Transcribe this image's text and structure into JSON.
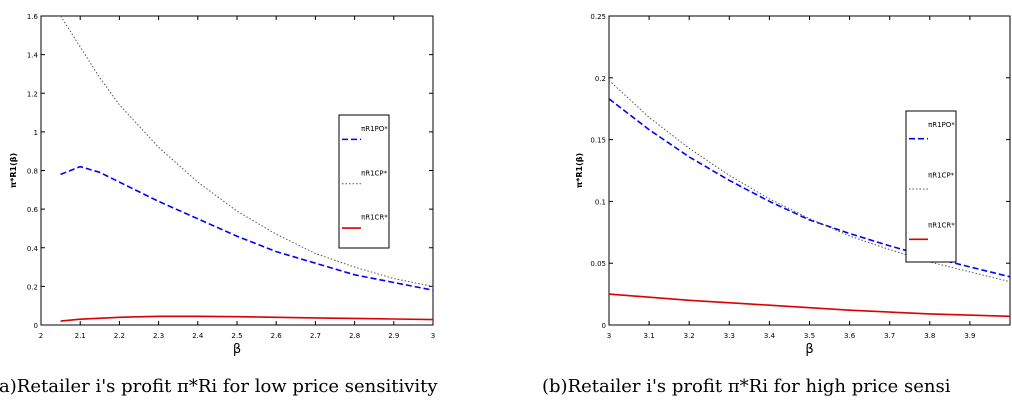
{
  "chart_data": [
    {
      "type": "line",
      "xlabel": "β",
      "ylabel": "π*R1(β)",
      "xlim": [
        2,
        3
      ],
      "ylim": [
        0,
        1.6
      ],
      "xticks": [
        "2",
        "2.1",
        "2.2",
        "2.3",
        "2.4",
        "2.5",
        "2.6",
        "2.7",
        "2.8",
        "2.9",
        "3"
      ],
      "yticks": [
        "0",
        "0.2",
        "0.4",
        "0.6",
        "0.8",
        "1",
        "1.2",
        "1.4",
        "1.6"
      ],
      "grid": false,
      "legend_position": "right",
      "series": [
        {
          "name": "πR1PO*",
          "style": "dashed",
          "color": "#0000ff",
          "x": [
            2.05,
            2.1,
            2.15,
            2.2,
            2.3,
            2.4,
            2.5,
            2.6,
            2.7,
            2.8,
            2.9,
            3.0
          ],
          "y": [
            0.78,
            0.82,
            0.79,
            0.74,
            0.64,
            0.55,
            0.46,
            0.38,
            0.32,
            0.26,
            0.22,
            0.18
          ]
        },
        {
          "name": "πR1CP*",
          "style": "dotted",
          "color": "#555555",
          "x": [
            2.05,
            2.1,
            2.15,
            2.2,
            2.3,
            2.4,
            2.5,
            2.6,
            2.7,
            2.8,
            2.9,
            3.0
          ],
          "y": [
            1.6,
            1.44,
            1.28,
            1.14,
            0.92,
            0.74,
            0.59,
            0.47,
            0.37,
            0.3,
            0.24,
            0.2
          ]
        },
        {
          "name": "πR1CR*",
          "style": "solid",
          "color": "#dd0000",
          "x": [
            2.05,
            2.1,
            2.2,
            2.3,
            2.4,
            2.5,
            2.6,
            2.7,
            2.8,
            2.9,
            3.0
          ],
          "y": [
            0.02,
            0.03,
            0.04,
            0.045,
            0.045,
            0.043,
            0.04,
            0.037,
            0.034,
            0.031,
            0.028
          ]
        }
      ],
      "caption": "(a)Retailer i's profit π*Ri for low price sensitivity"
    },
    {
      "type": "line",
      "xlabel": "β",
      "ylabel": "π*R1(β)",
      "xlim": [
        3,
        4
      ],
      "ylim": [
        0,
        0.25
      ],
      "xticks": [
        "3",
        "3.1",
        "3.2",
        "3.3",
        "3.4",
        "3.5",
        "3.6",
        "3.7",
        "3.8",
        "3.9"
      ],
      "yticks": [
        "0",
        "0.05",
        "0.1",
        "0.15",
        "0.2",
        "0.25"
      ],
      "grid": false,
      "legend_position": "right",
      "series": [
        {
          "name": "πR1PO*",
          "style": "dashed",
          "color": "#0000ff",
          "x": [
            3.0,
            3.1,
            3.2,
            3.3,
            3.4,
            3.5,
            3.6,
            3.7,
            3.8,
            3.9,
            4.0
          ],
          "y": [
            0.183,
            0.158,
            0.136,
            0.117,
            0.1,
            0.085,
            0.074,
            0.064,
            0.055,
            0.047,
            0.039
          ]
        },
        {
          "name": "πR1CP*",
          "style": "dotted",
          "color": "#555555",
          "x": [
            3.0,
            3.1,
            3.2,
            3.3,
            3.4,
            3.5,
            3.6,
            3.7,
            3.8,
            3.9,
            4.0
          ],
          "y": [
            0.198,
            0.168,
            0.143,
            0.121,
            0.102,
            0.086,
            0.072,
            0.061,
            0.051,
            0.043,
            0.035
          ]
        },
        {
          "name": "πR1CR*",
          "style": "solid",
          "color": "#dd0000",
          "x": [
            3.0,
            3.2,
            3.4,
            3.6,
            3.8,
            4.0
          ],
          "y": [
            0.025,
            0.02,
            0.016,
            0.012,
            0.009,
            0.007
          ]
        }
      ],
      "caption": "(b)Retailer i's profit π*Ri for high price sensi"
    }
  ]
}
